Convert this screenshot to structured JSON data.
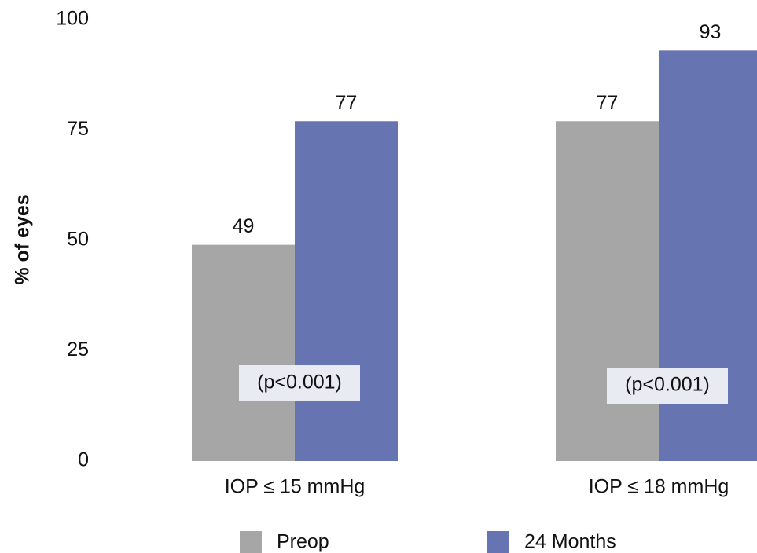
{
  "chart_data": {
    "type": "bar",
    "ylabel": "% of eyes",
    "categories": [
      "IOP ≤ 15 mmHg",
      "IOP ≤ 18 mmHg"
    ],
    "series": [
      {
        "name": "Preop",
        "color": "#a6a6a6",
        "values": [
          49,
          77
        ]
      },
      {
        "name": "24 Months",
        "color": "#6674b2",
        "values": [
          77,
          93
        ]
      }
    ],
    "annotations": [
      "(p<0.001)",
      "(p<0.001)"
    ],
    "ylim": [
      0,
      100
    ],
    "yticks": [
      0,
      25,
      50,
      75,
      100
    ],
    "grid": false,
    "legend": "bottom"
  }
}
